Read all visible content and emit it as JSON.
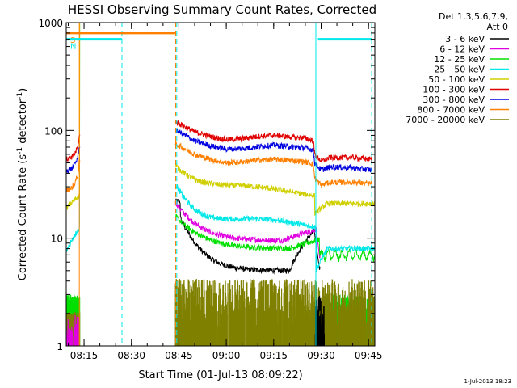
{
  "chart_data": {
    "type": "line",
    "title": "HESSI Observing Summary Count Rates, Corrected",
    "xlabel": "Start Time (01-Jul-13 08:09:22)",
    "ylabel_main": "Corrected Count Rate (s",
    "ylabel_sup1": "-1",
    "ylabel_mid": " detector",
    "ylabel_sup2": "-1",
    "ylabel_end": ")",
    "yscale": "log",
    "ylim": [
      1,
      1000
    ],
    "xlim": [
      "08:09:22",
      "09:47:00"
    ],
    "x_ticks": [
      "08:15",
      "08:30",
      "08:45",
      "09:00",
      "09:15",
      "09:30",
      "09:45"
    ],
    "y_ticks": [
      "1",
      "10",
      "100",
      "1000"
    ],
    "legend": {
      "placement": "right",
      "header1": "Det 1,3,5,6,7,9,",
      "header2": "Att 0",
      "entries": [
        {
          "label": "3 - 6 keV",
          "color": "#000000"
        },
        {
          "label": "6 - 12 keV",
          "color": "#e000e0"
        },
        {
          "label": "12 - 25 keV",
          "color": "#00e000"
        },
        {
          "label": "25 - 50 keV",
          "color": "#00e8e8"
        },
        {
          "label": "50 - 100 keV",
          "color": "#d0d000"
        },
        {
          "label": "100 - 300 keV",
          "color": "#e00000"
        },
        {
          "label": "300 - 800 keV",
          "color": "#0000e0"
        },
        {
          "label": "800 - 7000 keV",
          "color": "#ff8000"
        },
        {
          "label": "7000 - 20000 keV",
          "color": "#808000"
        }
      ]
    },
    "flags": [
      {
        "label": "S",
        "color": "#ff8000",
        "start": "08:09:22",
        "end": "08:44:00",
        "level": 800
      },
      {
        "label": "N",
        "color": "#00e8e8",
        "start": "08:09:22",
        "end": "08:27:00",
        "level": 700
      },
      {
        "label": "",
        "color": "#00e8e8",
        "start": "09:29:00",
        "end": "09:46:00",
        "level": 700
      }
    ],
    "vlines": [
      {
        "time": "08:13:30",
        "color": "#ff8000",
        "style": "solid"
      },
      {
        "time": "08:27:00",
        "color": "#00e8e8",
        "style": "dashed"
      },
      {
        "time": "08:44:00",
        "color": "#ff8000",
        "style": "dashed"
      },
      {
        "time": "08:44:20",
        "color": "#00e8e8",
        "style": "dashed"
      },
      {
        "time": "09:28:20",
        "color": "#00e8e8",
        "style": "solid"
      },
      {
        "time": "09:46:00",
        "color": "#00e8e8",
        "style": "dashed"
      }
    ],
    "series": [
      {
        "name": "3 - 6 keV",
        "color": "#000000",
        "points": [
          [
            "09:29:30",
            5
          ],
          [
            "09:29:45",
            5.5
          ]
        ]
      },
      {
        "name": "6 - 12 keV",
        "color": "#e000e0",
        "points": [
          [
            "09:29:30",
            7
          ],
          [
            "09:29:45",
            7
          ]
        ]
      },
      {
        "name": "12 - 25 keV",
        "color": "#00e000",
        "points": [
          [
            "09:29:30",
            9
          ],
          [
            "09:29:45",
            9
          ]
        ]
      },
      {
        "name": "25 - 50 keV",
        "color": "#00e8e8",
        "points": [
          [
            "09:29:30",
            12
          ],
          [
            "09:29:45",
            12
          ]
        ]
      },
      {
        "name": "50 - 100 keV",
        "color": "#d0d000",
        "points": [
          [
            "09:29:30",
            20
          ],
          [
            "09:29:45",
            20
          ]
        ]
      },
      {
        "name": "100 - 300 keV",
        "color": "#e00000",
        "points": [
          [
            "08:09:22",
            54
          ],
          [
            "08:11:00",
            55
          ],
          [
            "08:12:00",
            60
          ],
          [
            "08:13:00",
            70
          ],
          [
            "08:13:30",
            88
          ],
          [
            "08:44:00",
            120
          ],
          [
            "08:46:00",
            112
          ],
          [
            "08:50:00",
            97
          ],
          [
            "08:55:00",
            88
          ],
          [
            "09:00:00",
            82
          ],
          [
            "09:05:00",
            84
          ],
          [
            "09:10:00",
            88
          ],
          [
            "09:15:00",
            90
          ],
          [
            "09:20:00",
            87
          ],
          [
            "09:25:00",
            85
          ],
          [
            "09:27:30",
            80
          ],
          [
            "09:28:00",
            60
          ],
          [
            "09:30:00",
            52
          ],
          [
            "09:33:00",
            56
          ],
          [
            "09:40:00",
            56
          ],
          [
            "09:46:00",
            54
          ]
        ]
      },
      {
        "name": "300 - 800 keV",
        "color": "#0000e0",
        "points": [
          [
            "08:09:22",
            42
          ],
          [
            "08:11:00",
            44
          ],
          [
            "08:12:00",
            48
          ],
          [
            "08:13:00",
            56
          ],
          [
            "08:13:30",
            72
          ],
          [
            "08:44:00",
            100
          ],
          [
            "08:46:00",
            94
          ],
          [
            "08:50:00",
            80
          ],
          [
            "08:55:00",
            72
          ],
          [
            "09:00:00",
            67
          ],
          [
            "09:05:00",
            68
          ],
          [
            "09:10:00",
            71
          ],
          [
            "09:15:00",
            73
          ],
          [
            "09:20:00",
            71
          ],
          [
            "09:25:00",
            69
          ],
          [
            "09:27:30",
            66
          ],
          [
            "09:28:00",
            50
          ],
          [
            "09:30:00",
            43
          ],
          [
            "09:33:00",
            46
          ],
          [
            "09:40:00",
            45
          ],
          [
            "09:46:00",
            43
          ]
        ]
      },
      {
        "name": "800 - 7000 keV",
        "color": "#ff8000",
        "points": [
          [
            "08:09:22",
            28
          ],
          [
            "08:11:00",
            29
          ],
          [
            "08:12:00",
            32
          ],
          [
            "08:13:00",
            38
          ],
          [
            "08:13:30",
            52
          ],
          [
            "08:44:00",
            75
          ],
          [
            "08:46:00",
            70
          ],
          [
            "08:50:00",
            60
          ],
          [
            "08:55:00",
            54
          ],
          [
            "09:00:00",
            50
          ],
          [
            "09:05:00",
            51
          ],
          [
            "09:10:00",
            53
          ],
          [
            "09:15:00",
            54
          ],
          [
            "09:20:00",
            53
          ],
          [
            "09:25:00",
            51
          ],
          [
            "09:27:30",
            49
          ],
          [
            "09:28:00",
            36
          ],
          [
            "09:30:00",
            31
          ],
          [
            "09:33:00",
            33
          ],
          [
            "09:40:00",
            33
          ],
          [
            "09:46:00",
            32
          ]
        ]
      },
      {
        "name": "7000 - 20000 keV",
        "color": "#808000",
        "points": [
          [
            "09:29:30",
            2
          ],
          [
            "09:29:45",
            2
          ]
        ]
      }
    ]
  },
  "footer": {
    "timestamp": "1-Jul-2013 18:23"
  }
}
